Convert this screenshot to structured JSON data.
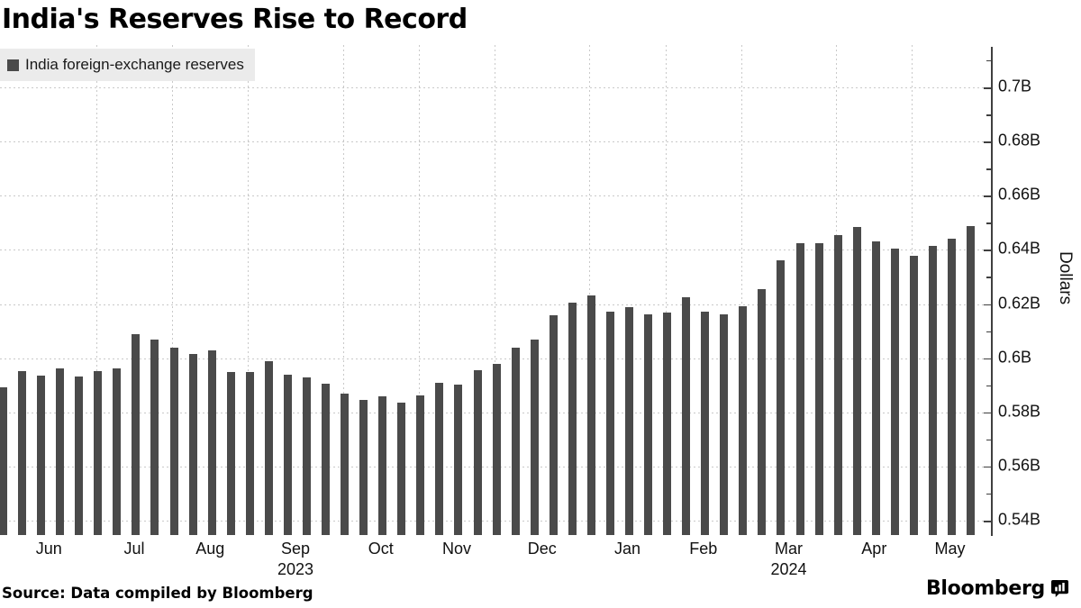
{
  "title": "India's Reserves Rise to Record",
  "legend": {
    "label": "India foreign-exchange reserves",
    "swatch_color": "#4a4a4a",
    "bg_color": "#ebebeb"
  },
  "footer": {
    "source": "Source: Data compiled by Bloomberg",
    "logo_text": "Bloomberg",
    "logo_icon": "bloomberg-terminal-icon"
  },
  "colors": {
    "bar": "#4a4a4a",
    "grid": "#c9c9c9",
    "axis": "#3f3f3f",
    "legend_bg": "#ebebeb",
    "text": "#000000"
  },
  "chart_data": {
    "type": "bar",
    "title": "India's Reserves Rise to Record",
    "ylabel": "Dollars",
    "ylim": [
      0.535,
      0.715
    ],
    "grid": true,
    "legend_position": "top-left",
    "bar_color": "#4a4a4a",
    "series_name": "India foreign-exchange reserves",
    "x_dates": [
      "2023-05-26",
      "2023-06-02",
      "2023-06-09",
      "2023-06-16",
      "2023-06-23",
      "2023-06-30",
      "2023-07-07",
      "2023-07-14",
      "2023-07-21",
      "2023-07-28",
      "2023-08-04",
      "2023-08-11",
      "2023-08-18",
      "2023-08-25",
      "2023-09-01",
      "2023-09-08",
      "2023-09-15",
      "2023-09-22",
      "2023-09-29",
      "2023-10-06",
      "2023-10-13",
      "2023-10-20",
      "2023-10-27",
      "2023-11-03",
      "2023-11-10",
      "2023-11-17",
      "2023-11-24",
      "2023-12-01",
      "2023-12-08",
      "2023-12-15",
      "2023-12-22",
      "2023-12-29",
      "2024-01-05",
      "2024-01-12",
      "2024-01-19",
      "2024-01-26",
      "2024-02-02",
      "2024-02-09",
      "2024-02-16",
      "2024-02-23",
      "2024-03-01",
      "2024-03-08",
      "2024-03-15",
      "2024-03-22",
      "2024-03-29",
      "2024-04-05",
      "2024-04-12",
      "2024-04-19",
      "2024-04-26",
      "2024-05-03",
      "2024-05-10",
      "2024-05-17"
    ],
    "values": [
      0.5891,
      0.5951,
      0.5937,
      0.5961,
      0.5932,
      0.5951,
      0.5963,
      0.609,
      0.607,
      0.6039,
      0.6015,
      0.6028,
      0.5949,
      0.5949,
      0.5989,
      0.5939,
      0.593,
      0.5907,
      0.5869,
      0.5847,
      0.5859,
      0.5835,
      0.5861,
      0.5908,
      0.5903,
      0.5954,
      0.5979,
      0.604,
      0.6069,
      0.616,
      0.6204,
      0.6232,
      0.6173,
      0.6189,
      0.6161,
      0.6167,
      0.6225,
      0.6172,
      0.6161,
      0.6191,
      0.6256,
      0.6361,
      0.6425,
      0.6426,
      0.6456,
      0.6486,
      0.6432,
      0.6403,
      0.6379,
      0.6416,
      0.6442,
      0.6487
    ],
    "month_labels": [
      "Jun",
      "Jul",
      "Aug",
      "Sep",
      "Oct",
      "Nov",
      "Dec",
      "Jan",
      "Feb",
      "Mar",
      "Apr",
      "May"
    ],
    "year_labels": [
      {
        "text": "2023",
        "month_index": 3
      },
      {
        "text": "2024",
        "month_index": 9
      }
    ],
    "y_axis": {
      "label": "Dollars",
      "major_ticks": [
        {
          "v": 0.7,
          "label": "0.7B"
        },
        {
          "v": 0.68,
          "label": "0.68B"
        },
        {
          "v": 0.66,
          "label": "0.66B"
        },
        {
          "v": 0.64,
          "label": "0.64B"
        },
        {
          "v": 0.62,
          "label": "0.62B"
        },
        {
          "v": 0.6,
          "label": "0.6B"
        },
        {
          "v": 0.58,
          "label": "0.58B"
        },
        {
          "v": 0.56,
          "label": "0.56B"
        },
        {
          "v": 0.54,
          "label": "0.54B"
        }
      ],
      "minor_ticks": [
        0.71,
        0.69,
        0.67,
        0.65,
        0.63,
        0.61,
        0.59,
        0.57,
        0.55
      ]
    }
  }
}
